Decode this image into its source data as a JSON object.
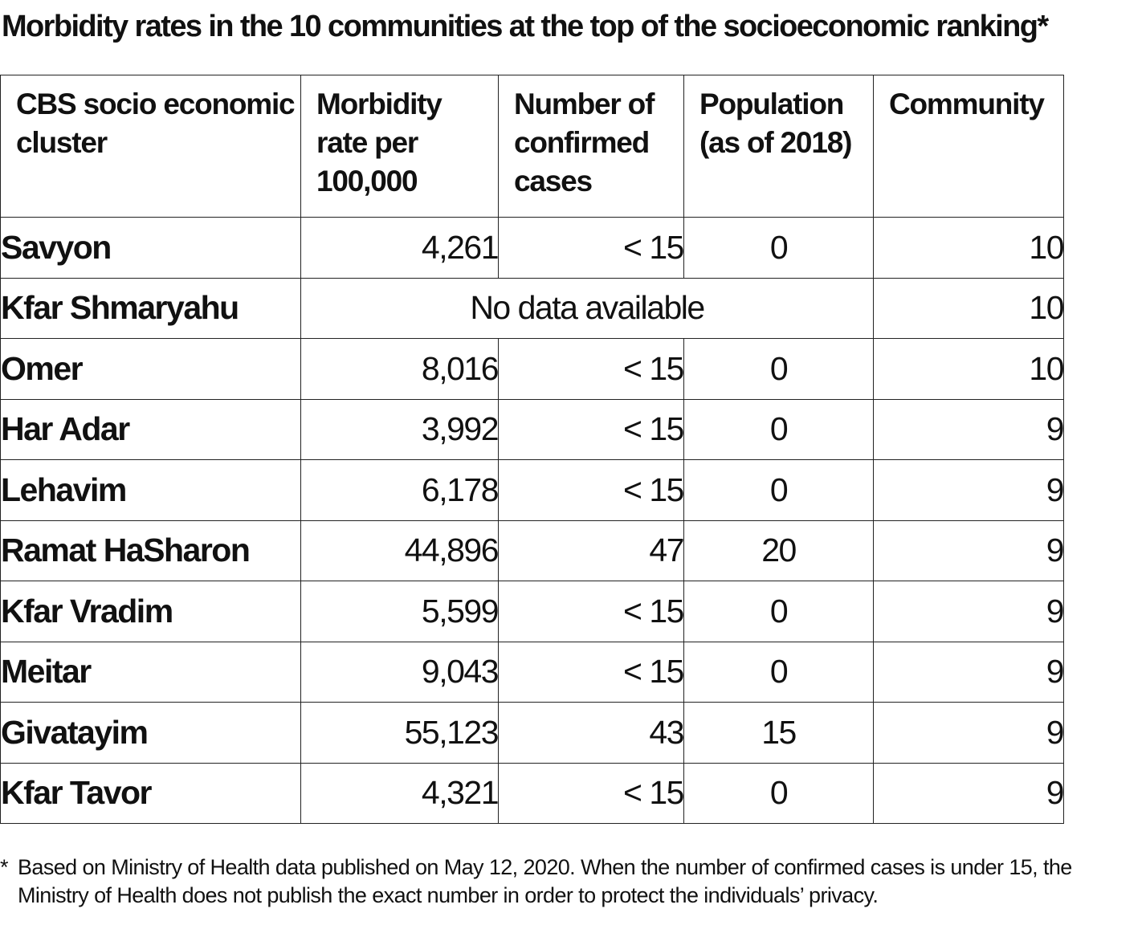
{
  "title": "Morbidity rates in the 10 communities at the top of the socioeconomic ranking*",
  "chart_data": {
    "type": "table",
    "title": "Morbidity rates in the 10 communities at the top of the socioeconomic ranking*",
    "columns": [
      "CBS socio economic cluster",
      "Morbidity rate per 100,000",
      "Number of confirmed cases",
      "Population (as of 2018)",
      "Community"
    ],
    "rows": [
      {
        "name": "Savyon",
        "rate": "4,261",
        "cases": "< 15",
        "population": "0",
        "community": "10"
      },
      {
        "name": "Kfar Shmaryahu",
        "no_data": "No data available",
        "community": "10"
      },
      {
        "name": "Omer",
        "rate": "8,016",
        "cases": "< 15",
        "population": "0",
        "community": "10"
      },
      {
        "name": "Har Adar",
        "rate": "3,992",
        "cases": "< 15",
        "population": "0",
        "community": "9"
      },
      {
        "name": "Lehavim",
        "rate": "6,178",
        "cases": "< 15",
        "population": "0",
        "community": "9"
      },
      {
        "name": "Ramat HaSharon",
        "rate": "44,896",
        "cases": "47",
        "population": "20",
        "community": "9"
      },
      {
        "name": "Kfar Vradim",
        "rate": "5,599",
        "cases": "< 15",
        "population": "0",
        "community": "9"
      },
      {
        "name": "Meitar",
        "rate": "9,043",
        "cases": "< 15",
        "population": "0",
        "community": "9"
      },
      {
        "name": "Givatayim",
        "rate": "55,123",
        "cases": "43",
        "population": "15",
        "community": "9"
      },
      {
        "name": "Kfar Tavor",
        "rate": "4,321",
        "cases": "< 15",
        "population": "0",
        "community": "9"
      }
    ]
  },
  "footnote": {
    "marker": "*",
    "text": "Based on Ministry of Health data published on May 12, 2020. When the number of confirmed cases is under 15, the Ministry of Health does not publish the exact number in order to protect the individuals’ privacy."
  }
}
